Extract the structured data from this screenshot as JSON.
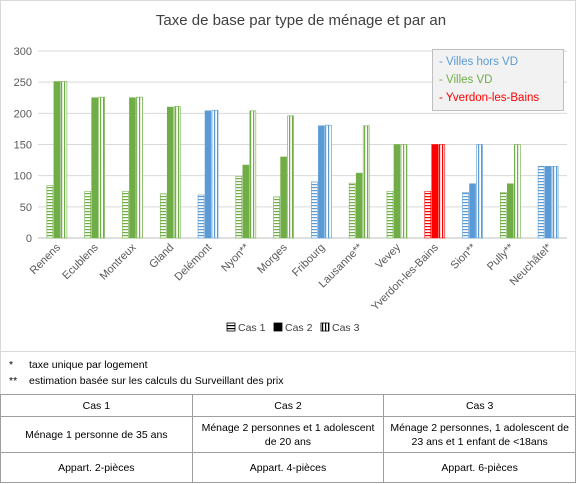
{
  "chart_data": {
    "type": "bar",
    "title": "Taxe de base par type de ménage et par an",
    "xlabel": "",
    "ylabel": "",
    "ylim": [
      0,
      300
    ],
    "yticks": [
      0,
      50,
      100,
      150,
      200,
      250,
      300
    ],
    "grid": true,
    "categories": [
      "Renens",
      "Ecublens",
      "Montreux",
      "Gland",
      "Delémont",
      "Nyon**",
      "Morges",
      "Fribourg",
      "Lausanne**",
      "Vevey",
      "Yverdon-les-Bains",
      "Sion**",
      "Pully**",
      "Neuchâtel*"
    ],
    "groups": [
      "vd",
      "vd",
      "vd",
      "vd",
      "hors",
      "vd",
      "vd",
      "hors",
      "vd",
      "vd",
      "yverdon",
      "hors",
      "vd",
      "hors"
    ],
    "series": [
      {
        "name": "Cas 1",
        "values": [
          84,
          75,
          75,
          71,
          69,
          99,
          66,
          90,
          88,
          75,
          75,
          73,
          73,
          115
        ]
      },
      {
        "name": "Cas 2",
        "values": [
          251,
          225,
          225,
          210,
          204,
          117,
          130,
          180,
          104,
          150,
          150,
          87,
          87,
          115
        ]
      },
      {
        "name": "Cas 3",
        "values": [
          251,
          226,
          226,
          211,
          205,
          204,
          196,
          181,
          180,
          150,
          150,
          150,
          150,
          115
        ]
      }
    ],
    "colors": {
      "hors": "#5b9bd5",
      "vd": "#70ad47",
      "yverdon": "#ff0000",
      "legend": "#000000"
    },
    "group_legend": [
      {
        "key": "hors",
        "label": "- Villes hors VD",
        "color": "#5b9bd5"
      },
      {
        "key": "vd",
        "label": "- Villes VD",
        "color": "#70ad47"
      },
      {
        "key": "yverdon",
        "label": "- Yverdon-les-Bains",
        "color": "#ff0000"
      }
    ],
    "legend": [
      "Cas 1",
      "Cas 2",
      "Cas 3"
    ],
    "legend_position": "bottom"
  },
  "notes": [
    {
      "mark": "*",
      "text": "taxe unique par logement"
    },
    {
      "mark": "**",
      "text": "estimation basée sur les calculs du Surveillant des prix"
    }
  ],
  "cases_table": {
    "headers": [
      "Cas 1",
      "Cas 2",
      "Cas 3"
    ],
    "household": [
      "Ménage 1 personne de 35 ans",
      "Ménage 2 personnes et 1 adolescent de 20 ans",
      "Ménage 2 personnes, 1 adolescent de 23 ans et 1 enfant de <18ans"
    ],
    "dwelling": [
      "Appart. 2-pièces",
      "Appart. 4-pièces",
      "Appart. 6-pièces"
    ]
  }
}
